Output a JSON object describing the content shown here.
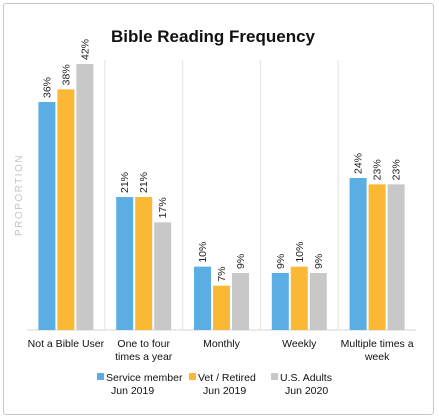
{
  "chart_data": {
    "type": "bar",
    "title": "Bible Reading Frequency",
    "xlabel": "",
    "ylabel": "PROPORTION",
    "ylim": [
      0,
      45
    ],
    "grid": false,
    "legend_position": "bottom",
    "categories": [
      [
        "Not a Bible User"
      ],
      [
        "One to four",
        "times a year"
      ],
      [
        "Monthly"
      ],
      [
        "Weekly"
      ],
      [
        "Multiple times a",
        "week"
      ]
    ],
    "series": [
      {
        "name": [
          "Service member",
          "Jun 2019"
        ],
        "color": "#5aaee4",
        "values": [
          36,
          21,
          10,
          9,
          24
        ]
      },
      {
        "name": [
          "Vet / Retired",
          "Jun 2019"
        ],
        "color": "#fab835",
        "values": [
          38,
          21,
          7,
          10,
          23
        ]
      },
      {
        "name": [
          "U.S. Adults",
          "Jun 2020"
        ],
        "color": "#c8c8c8",
        "values": [
          42,
          17,
          9,
          9,
          23
        ]
      }
    ],
    "value_suffix": "%"
  }
}
